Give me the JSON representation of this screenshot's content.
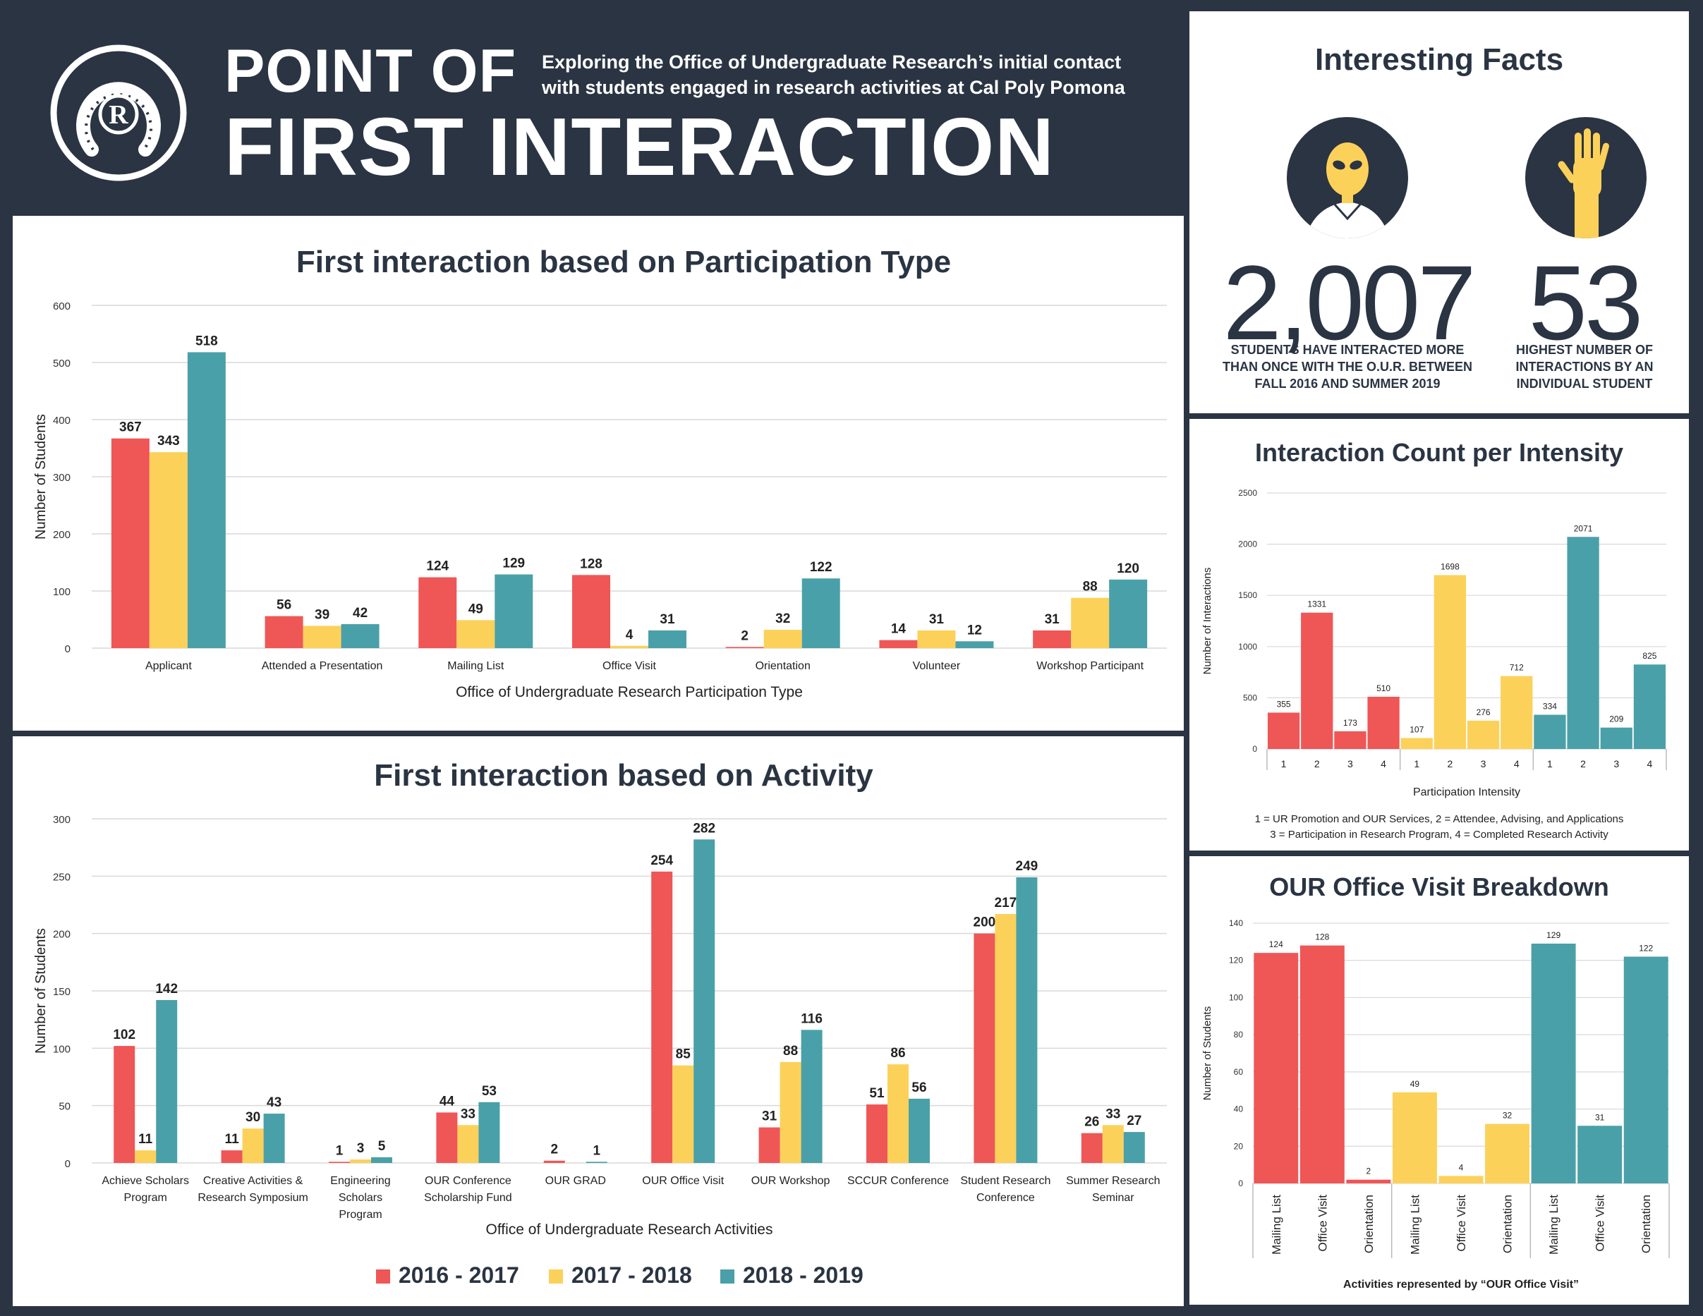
{
  "header": {
    "title_line1": "POINT OF",
    "title_line2": "FIRST INTERACTION",
    "subtitle": "Exploring the Office of Undergraduate Research’s initial contact with students engaged in research activities at Cal Poly Pomona",
    "logo_letter": "R"
  },
  "facts": {
    "title": "Interesting Facts",
    "fact1": {
      "number": "2,007",
      "caption": "STUDENTS HAVE INTERACTED MORE THAN ONCE WITH THE O.U.R. BETWEEN FALL 2016 AND SUMMER 2019",
      "icon": "alien-person-icon"
    },
    "fact2": {
      "number": "53",
      "caption": "HIGHEST NUMBER OF INTERACTIONS BY AN INDIVIDUAL STUDENT",
      "icon": "raised-hand-icon"
    }
  },
  "colors": {
    "navy": "#2a3442",
    "red": "#ef5656",
    "yellow": "#fcd15a",
    "teal": "#4aa0a8"
  },
  "legend": {
    "items": [
      "2016 - 2017",
      "2017 - 2018",
      "2018 - 2019"
    ]
  },
  "chart_data": [
    {
      "id": "participation",
      "type": "bar",
      "title": "First interaction based on Participation Type",
      "xlabel": "Office of Undergraduate Research Participation Type",
      "ylabel": "Number of Students",
      "ylim": [
        0,
        600
      ],
      "yticks": [
        0,
        100,
        200,
        300,
        400,
        500,
        600
      ],
      "grid": true,
      "categories": [
        "Applicant",
        "Attended a Presentation",
        "Mailing List",
        "Office Visit",
        "Orientation",
        "Volunteer",
        "Workshop Participant"
      ],
      "series": [
        {
          "name": "2016 - 2017",
          "values": [
            367,
            56,
            124,
            128,
            2,
            14,
            31
          ]
        },
        {
          "name": "2017 - 2018",
          "values": [
            343,
            39,
            49,
            4,
            32,
            31,
            88
          ]
        },
        {
          "name": "2018 - 2019",
          "values": [
            518,
            42,
            129,
            31,
            122,
            12,
            120
          ]
        }
      ]
    },
    {
      "id": "activity",
      "type": "bar",
      "title": "First interaction based on Activity",
      "xlabel": "Office of Undergraduate Research Activities",
      "ylabel": "Number of Students",
      "ylim": [
        0,
        300
      ],
      "yticks": [
        0,
        50,
        100,
        150,
        200,
        250,
        300
      ],
      "grid": true,
      "categories": [
        [
          "Achieve Scholars",
          "Program"
        ],
        [
          "Creative Activities &",
          "Research Symposium"
        ],
        [
          "Engineering",
          "Scholars",
          "Program"
        ],
        [
          "OUR Conference",
          "Scholarship Fund"
        ],
        [
          "OUR GRAD"
        ],
        [
          "OUR Office Visit"
        ],
        [
          "OUR Workshop"
        ],
        [
          "SCCUR Conference"
        ],
        [
          "Student Research",
          "Conference"
        ],
        [
          "Summer Research",
          "Seminar"
        ]
      ],
      "series": [
        {
          "name": "2016 - 2017",
          "values": [
            102,
            11,
            1,
            44,
            2,
            254,
            31,
            51,
            200,
            26
          ]
        },
        {
          "name": "2017 - 2018",
          "values": [
            11,
            30,
            3,
            33,
            null,
            85,
            88,
            86,
            217,
            33
          ]
        },
        {
          "name": "2018 - 2019",
          "values": [
            142,
            43,
            5,
            53,
            1,
            282,
            116,
            56,
            249,
            27
          ]
        }
      ],
      "legend": "bottom-center"
    },
    {
      "id": "intensity",
      "type": "bar",
      "title": "Interaction Count per Intensity",
      "xlabel": "Participation Intensity",
      "ylabel": "Number of Interactions",
      "ylim": [
        0,
        2500
      ],
      "yticks": [
        0,
        500,
        1000,
        1500,
        2000,
        2500
      ],
      "grid": true,
      "groups": [
        {
          "name": "2016 - 2017",
          "categories": [
            "1",
            "2",
            "3",
            "4"
          ],
          "values": [
            355,
            1331,
            173,
            510
          ]
        },
        {
          "name": "2017 - 2018",
          "categories": [
            "1",
            "2",
            "3",
            "4"
          ],
          "values": [
            107,
            1698,
            276,
            712
          ]
        },
        {
          "name": "2018 - 2019",
          "categories": [
            "1",
            "2",
            "3",
            "4"
          ],
          "values": [
            334,
            2071,
            209,
            825
          ]
        }
      ],
      "footnote_line1": "1 = UR Promotion and OUR Services, 2 = Attendee, Advising, and Applications",
      "footnote_line2": "3 = Participation in Research Program, 4 =  Completed Research Activity"
    },
    {
      "id": "officevisit",
      "type": "bar",
      "title": "OUR Office Visit Breakdown",
      "xlabel": "Activities represented by “OUR Office Visit”",
      "ylabel": "Number of Students",
      "ylim": [
        0,
        140
      ],
      "yticks": [
        0,
        20,
        40,
        60,
        80,
        100,
        120,
        140
      ],
      "grid": true,
      "groups": [
        {
          "name": "2016 - 2017",
          "categories": [
            "Mailing List",
            "Office Visit",
            "Orientation"
          ],
          "values": [
            124,
            128,
            2
          ]
        },
        {
          "name": "2017 - 2018",
          "categories": [
            "Mailing List",
            "Office Visit",
            "Orientation"
          ],
          "values": [
            49,
            4,
            32
          ]
        },
        {
          "name": "2018 - 2019",
          "categories": [
            "Mailing List",
            "Office Visit",
            "Orientation"
          ],
          "values": [
            129,
            31,
            122
          ]
        }
      ]
    }
  ]
}
